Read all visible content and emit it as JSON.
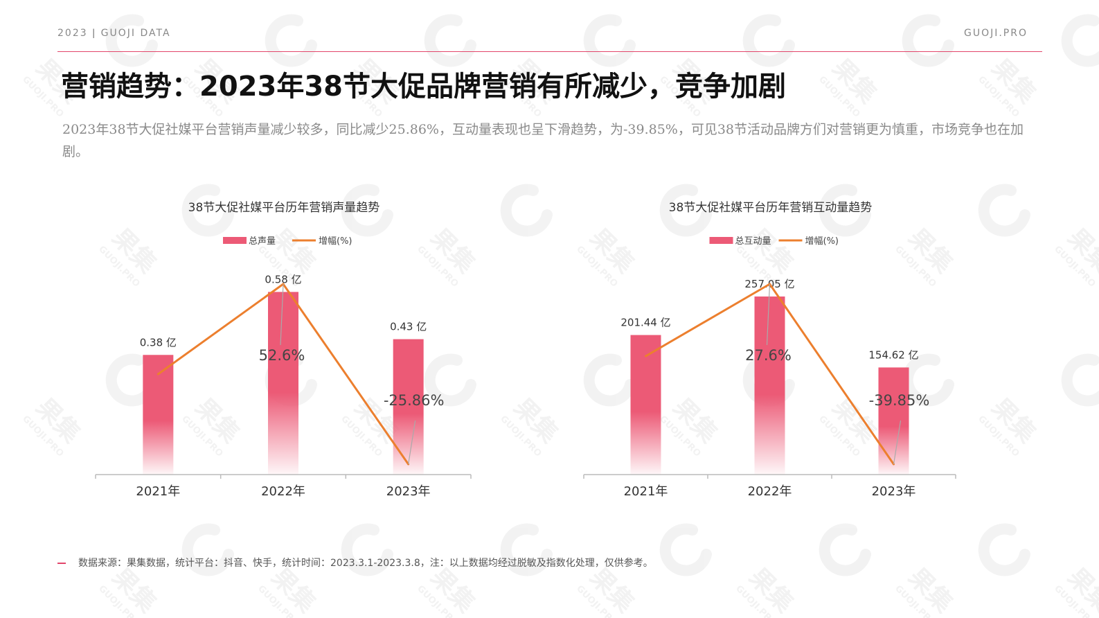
{
  "header": {
    "left_text": "2023 ǀ GUOJI DATA",
    "right_text": "GUOJI.PRO",
    "accent_color": "#e2456a"
  },
  "page": {
    "title": "营销趋势：2023年38节大促品牌营销有所减少，竞争加剧",
    "subtitle": "2023年38节大促社媒平台营销声量减少较多，同比减少25.86%，互动量表现也呈下滑趋势，为-39.85%，可见38节活动品牌方们对营销更为慎重，市场竞争也在加剧。"
  },
  "watermark": {
    "brand_cn": "果集",
    "brand_en": "GUOJI.PRO"
  },
  "chart_data": [
    {
      "type": "bar",
      "title": "38节大促社媒平台历年营销声量趋势",
      "categories": [
        "2021年",
        "2022年",
        "2023年"
      ],
      "series": [
        {
          "name": "总声量",
          "kind": "bar",
          "values": [
            0.38,
            0.58,
            0.43
          ],
          "labels": [
            "0.38 亿",
            "0.58 亿",
            "0.43 亿"
          ],
          "color": "#ec5a76"
        },
        {
          "name": "增幅(%)",
          "kind": "line",
          "values": [
            null,
            52.6,
            -25.86
          ],
          "labels": [
            "",
            "52.6%",
            "-25.86%"
          ],
          "color": "#ec7f2e"
        }
      ],
      "bar_ylim": [
        0,
        0.66
      ],
      "line_points": [
        0.5,
        1.0,
        0.0
      ],
      "legend_position": "top-center",
      "grid": false
    },
    {
      "type": "bar",
      "title": "38节大促社媒平台历年营销互动量趋势",
      "categories": [
        "2021年",
        "2022年",
        "2023年"
      ],
      "series": [
        {
          "name": "总互动量",
          "kind": "bar",
          "values": [
            201.44,
            257.05,
            154.62
          ],
          "labels": [
            "201.44 亿",
            "257.05 亿",
            "154.62 亿"
          ],
          "color": "#ec5a76"
        },
        {
          "name": "增幅(%)",
          "kind": "line",
          "values": [
            null,
            27.6,
            -39.85
          ],
          "labels": [
            "",
            "27.6%",
            "-39.85%"
          ],
          "color": "#ec7f2e"
        }
      ],
      "bar_ylim": [
        0,
        300
      ],
      "line_points": [
        0.6,
        1.0,
        0.0
      ],
      "legend_position": "top-center",
      "grid": false
    }
  ],
  "footer": {
    "source_text": "数据来源：果集数据，统计平台：抖音、快手，统计时间：2023.3.1-2023.3.8，注：以上数据均经过脱敏及指数化处理，仅供参考。"
  }
}
